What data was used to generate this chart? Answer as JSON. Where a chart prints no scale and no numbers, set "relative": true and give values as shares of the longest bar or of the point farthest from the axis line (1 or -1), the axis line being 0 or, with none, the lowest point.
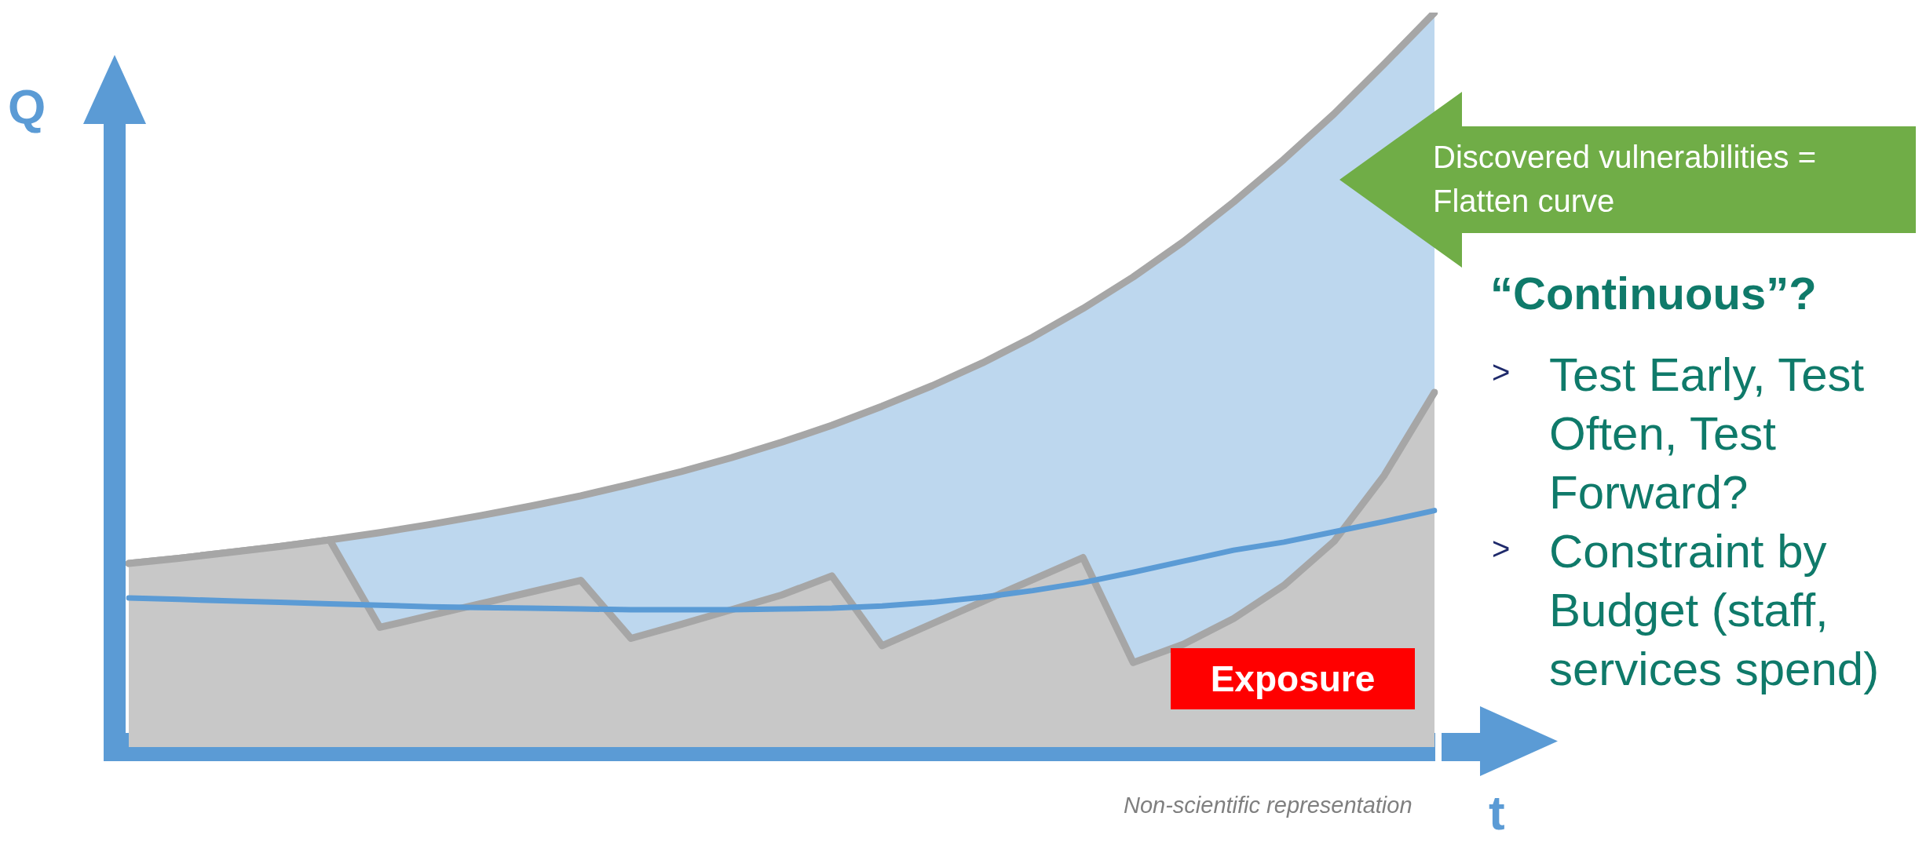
{
  "chart_data": {
    "type": "line",
    "relative": true,
    "xlabel": "t",
    "ylabel": "Q",
    "categories": [
      null,
      null,
      null,
      null,
      null,
      null,
      null,
      null,
      null,
      null,
      null,
      null,
      null,
      null,
      null,
      null,
      null,
      null,
      null,
      null,
      null,
      null,
      null,
      null,
      null,
      null,
      null
    ],
    "series": [
      {
        "type": "area",
        "color": "#bdd7ee",
        "values": [
          0.25,
          0.257,
          0.265,
          0.273,
          0.282,
          0.292,
          0.303,
          0.315,
          0.328,
          0.342,
          0.358,
          0.375,
          0.394,
          0.415,
          0.438,
          0.464,
          0.492,
          0.523,
          0.558,
          0.597,
          0.64,
          0.688,
          0.742,
          0.8,
          0.862,
          0.93,
          1.0
        ]
      },
      {
        "type": "area",
        "color": "#c8c8c8",
        "values": [
          0.25,
          0.257,
          0.265,
          0.273,
          0.282,
          0.163,
          0.179,
          0.195,
          0.211,
          0.227,
          0.148,
          0.167,
          0.187,
          0.207,
          0.233,
          0.138,
          0.168,
          0.198,
          0.228,
          0.258,
          0.115,
          0.14,
          0.175,
          0.22,
          0.28,
          0.37,
          0.483
        ]
      },
      {
        "type": "line",
        "color": "#5b9bd5",
        "values": [
          0.203,
          0.201,
          0.199,
          0.197,
          0.195,
          0.193,
          0.191,
          0.19,
          0.189,
          0.188,
          0.187,
          0.187,
          0.187,
          0.188,
          0.189,
          0.192,
          0.197,
          0.204,
          0.213,
          0.224,
          0.238,
          0.253,
          0.268,
          0.279,
          0.293,
          0.307,
          0.322
        ]
      }
    ],
    "annotations": [
      "Exposure",
      "Discovered vulnerabilities = Flatten curve",
      "“Continuous”?",
      ">",
      "Test Early, Test Often, Test Forward?",
      ">",
      "Constraint by Budget (staff, services spend)",
      "Non-scientific representation"
    ],
    "legend": false,
    "grid": false,
    "tick_labels": false,
    "marker": "none"
  }
}
